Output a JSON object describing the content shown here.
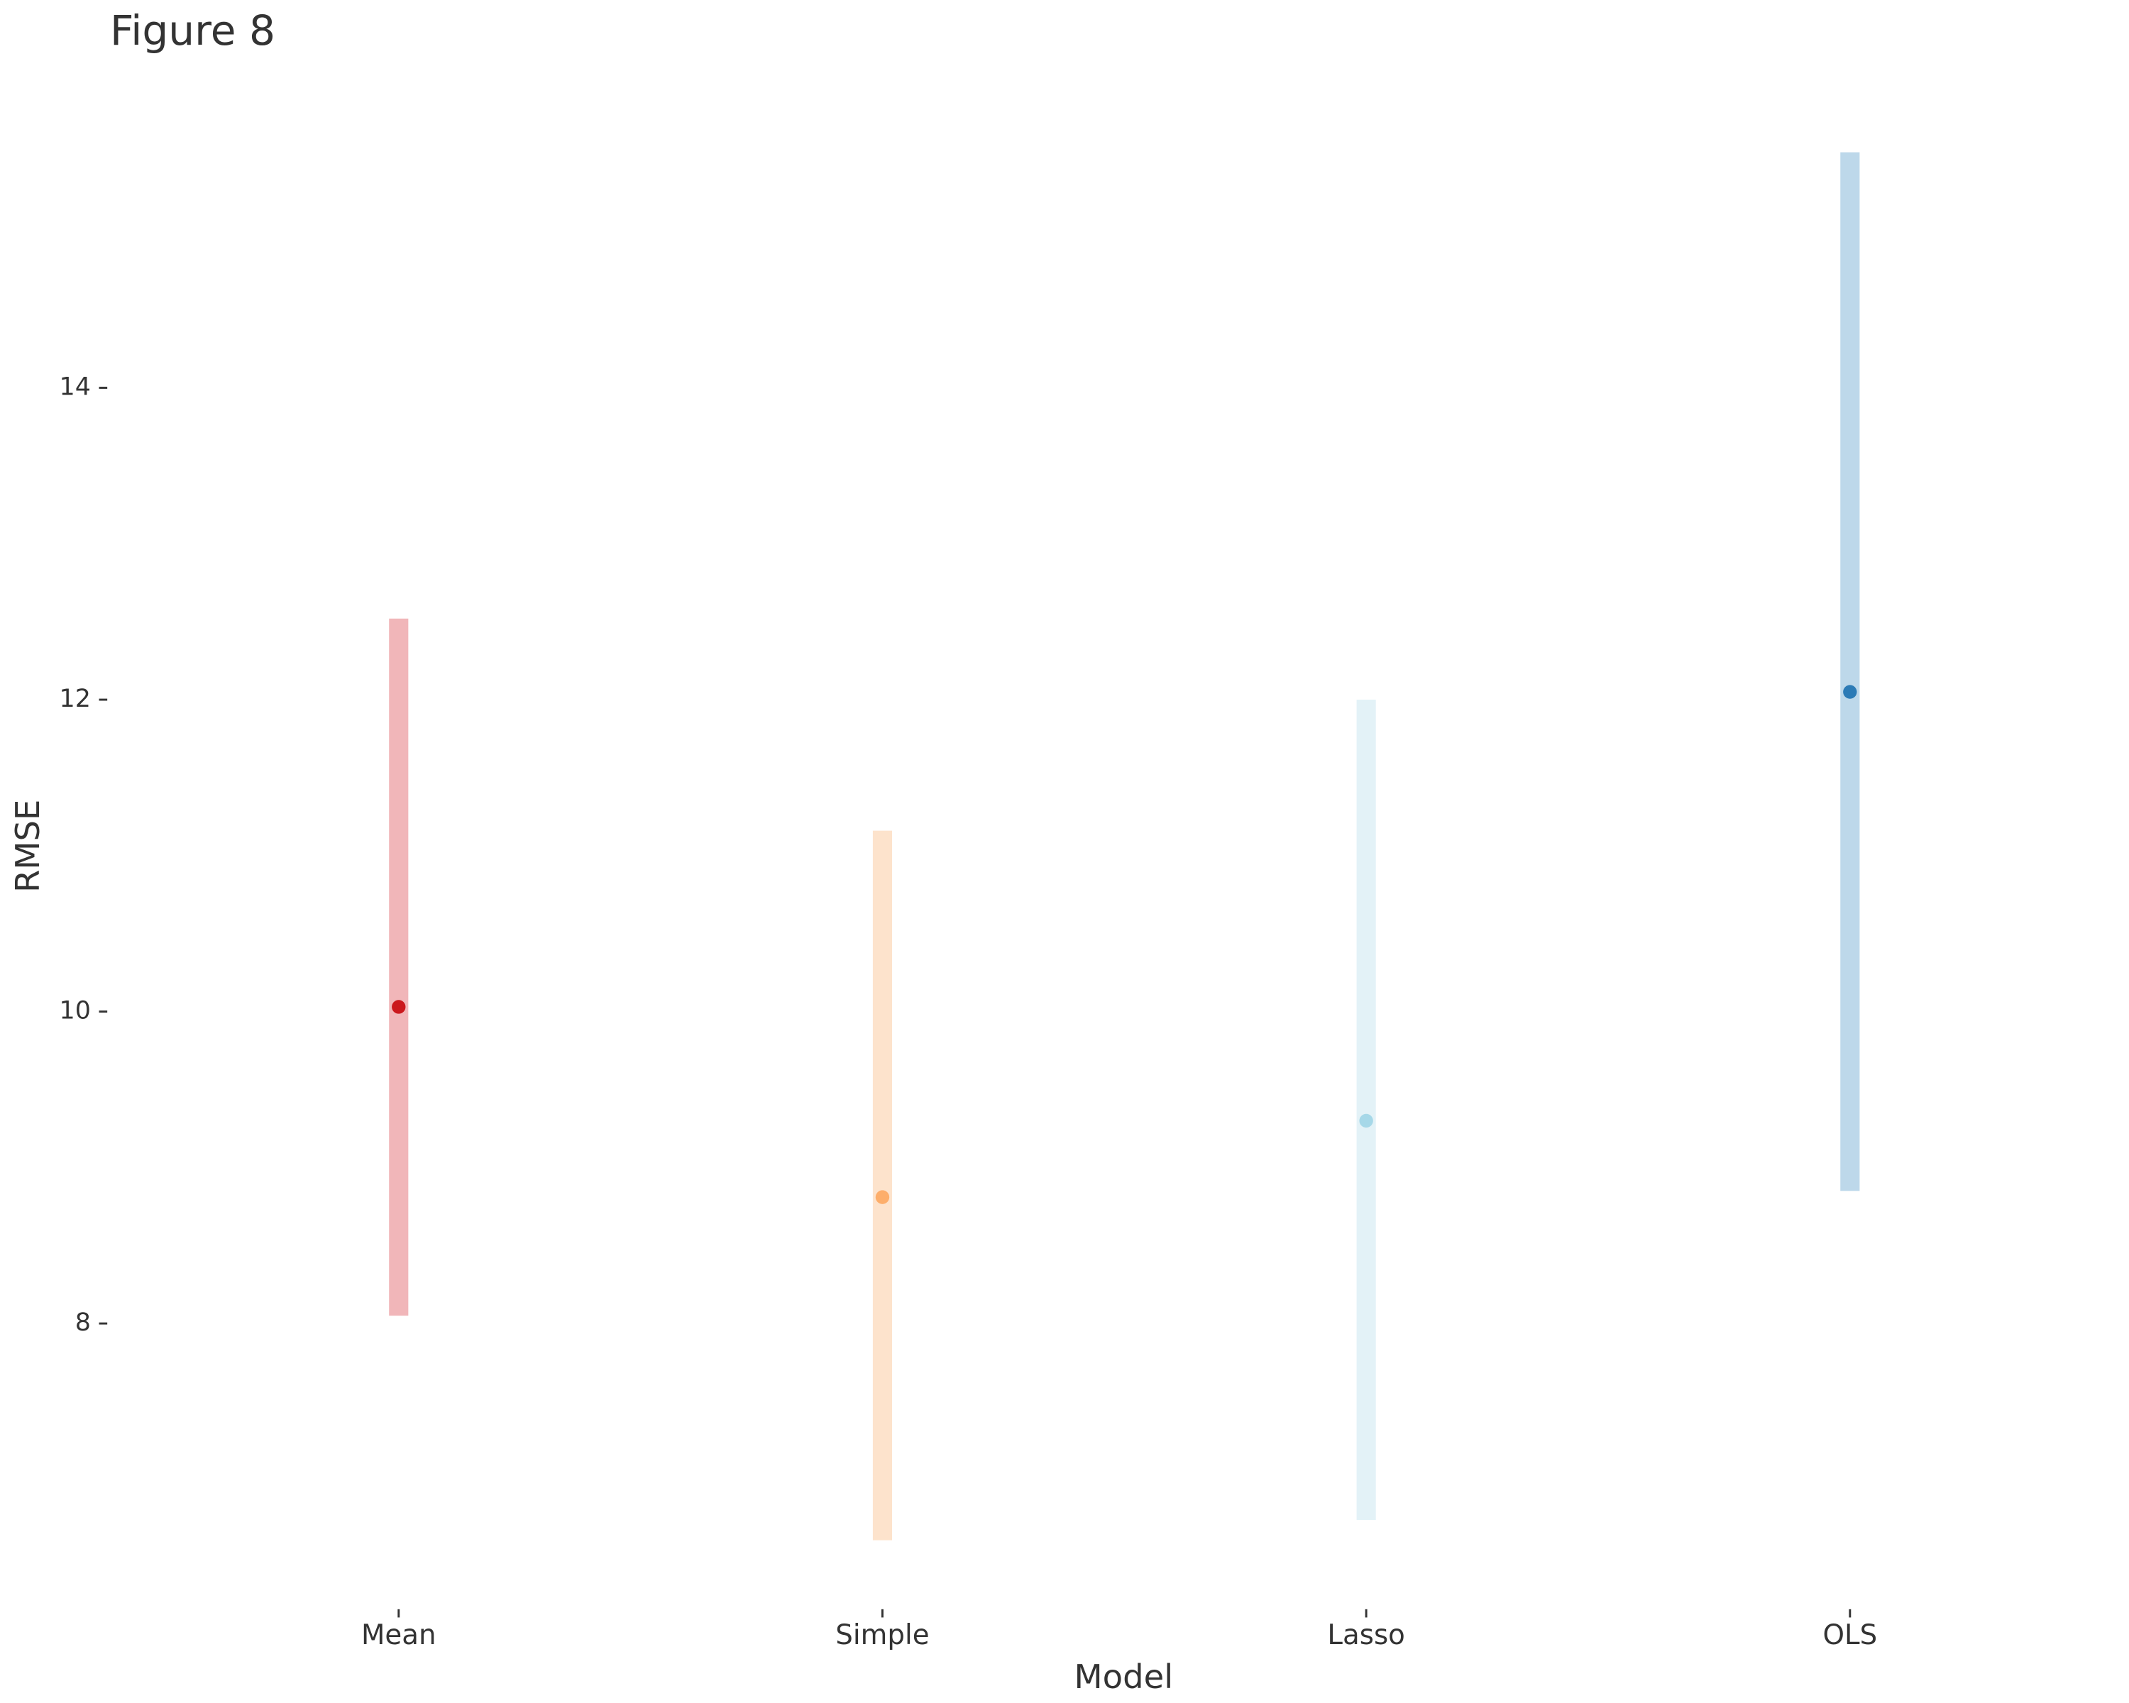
{
  "chart_data": {
    "type": "interval",
    "title": "Figure 8",
    "x_label": "Model",
    "y_label": "RMSE",
    "categories": [
      "Mean",
      "Simple",
      "Lasso",
      "OLS"
    ],
    "values": [
      10.03,
      8.81,
      9.3,
      12.05
    ],
    "lower": [
      8.05,
      6.61,
      6.74,
      8.85
    ],
    "upper": [
      12.52,
      11.16,
      12.0,
      15.51
    ],
    "colors": [
      "#cb181d",
      "#fdae6b",
      "#a6d8e8",
      "#2c7bb6"
    ],
    "band_colors": [
      "#f1b6b9",
      "#fde3cc",
      "#e3f2f7",
      "#bdd8ea"
    ],
    "ylim": [
      6.3,
      15.7
    ],
    "yticks": [
      8,
      10,
      12,
      14
    ],
    "grid": false
  }
}
